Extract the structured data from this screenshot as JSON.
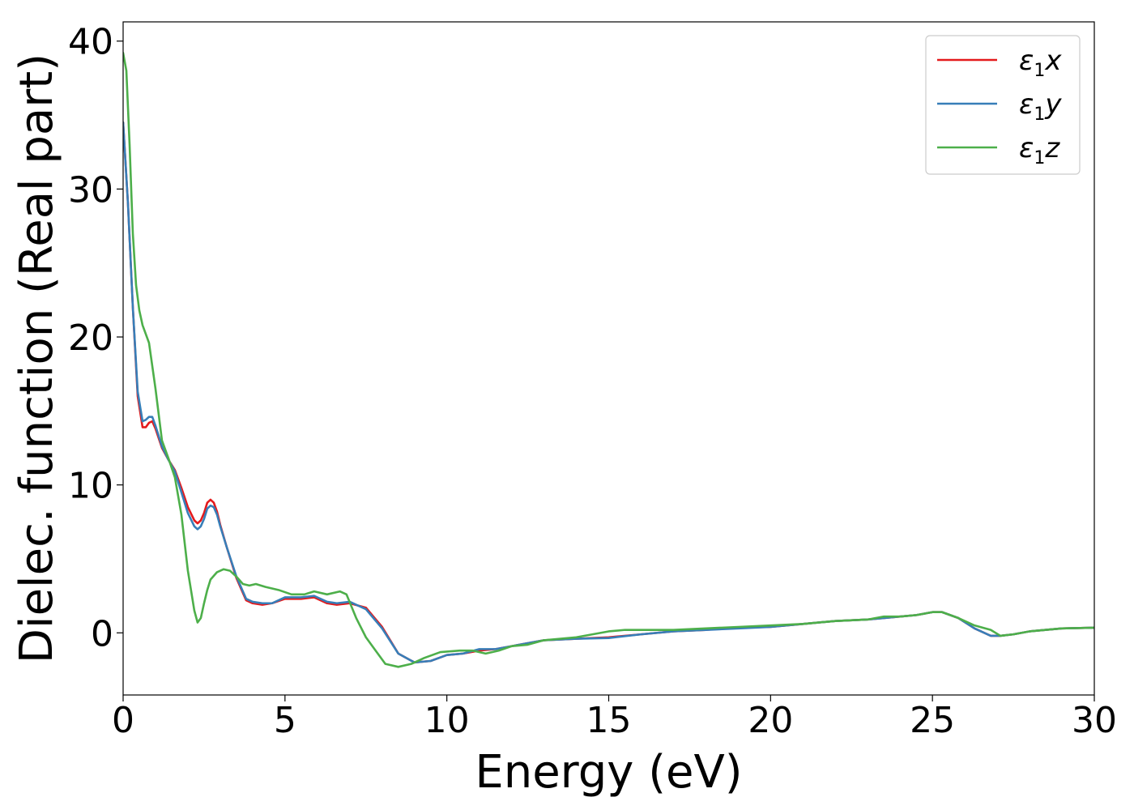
{
  "chart_data": {
    "type": "line",
    "xlabel": "Energy (eV)",
    "ylabel": "Dielec. function (Real part)",
    "xlim": [
      0,
      30
    ],
    "ylim": [
      -4.2,
      41.3
    ],
    "xticks": [
      0,
      5,
      10,
      15,
      20,
      25,
      30
    ],
    "yticks": [
      0,
      10,
      20,
      30,
      40
    ],
    "grid": false,
    "legend_position": "top-right",
    "series": [
      {
        "name": "ε1x",
        "legend": {
          "base": "ε",
          "sub": "1",
          "suffix": "x"
        },
        "color": "#e41a1c",
        "x": [
          0,
          0.15,
          0.3,
          0.45,
          0.6,
          0.7,
          0.8,
          0.9,
          1.0,
          1.2,
          1.4,
          1.6,
          1.8,
          2.0,
          2.2,
          2.3,
          2.4,
          2.5,
          2.6,
          2.7,
          2.8,
          2.9,
          3.0,
          3.2,
          3.5,
          3.8,
          4.0,
          4.3,
          4.6,
          5.0,
          5.5,
          5.9,
          6.3,
          6.6,
          7.0,
          7.5,
          8.0,
          8.5,
          9.0,
          9.5,
          10.0,
          10.5,
          11.0,
          11.5,
          12.0,
          12.5,
          13.0,
          14.0,
          15.0,
          16.0,
          17.0,
          18.0,
          19.0,
          20.0,
          21.0,
          22.0,
          23.0,
          24.0,
          24.5,
          25.0,
          25.3,
          25.8,
          26.3,
          26.8,
          27.1,
          27.5,
          28.0,
          29.0,
          30.0
        ],
        "y": [
          34.5,
          29,
          22,
          16,
          13.9,
          13.9,
          14.2,
          14.3,
          13.8,
          12.5,
          11.7,
          11.0,
          9.8,
          8.5,
          7.6,
          7.4,
          7.6,
          8.1,
          8.8,
          9.0,
          8.8,
          8.2,
          7.3,
          5.8,
          3.7,
          2.2,
          2.0,
          1.9,
          2.0,
          2.3,
          2.3,
          2.4,
          2.0,
          1.9,
          2.0,
          1.7,
          0.4,
          -1.4,
          -2.0,
          -1.9,
          -1.5,
          -1.4,
          -1.2,
          -1.1,
          -0.9,
          -0.7,
          -0.5,
          -0.4,
          -0.3,
          -0.1,
          0.1,
          0.2,
          0.35,
          0.4,
          0.6,
          0.8,
          0.9,
          1.1,
          1.2,
          1.4,
          1.4,
          1.0,
          0.3,
          -0.2,
          -0.2,
          -0.1,
          0.1,
          0.3,
          0.35
        ]
      },
      {
        "name": "ε1y",
        "legend": {
          "base": "ε",
          "sub": "1",
          "suffix": "y"
        },
        "color": "#377eb8",
        "x": [
          0,
          0.15,
          0.3,
          0.45,
          0.6,
          0.7,
          0.8,
          0.9,
          1.0,
          1.2,
          1.4,
          1.6,
          1.8,
          2.0,
          2.2,
          2.3,
          2.4,
          2.5,
          2.6,
          2.7,
          2.8,
          2.9,
          3.0,
          3.2,
          3.5,
          3.8,
          4.0,
          4.3,
          4.6,
          5.0,
          5.5,
          5.9,
          6.3,
          6.6,
          7.0,
          7.5,
          8.0,
          8.5,
          9.0,
          9.5,
          10.0,
          10.5,
          11.0,
          11.5,
          12.0,
          12.5,
          13.0,
          14.0,
          15.0,
          16.0,
          17.0,
          18.0,
          19.0,
          20.0,
          21.0,
          22.0,
          23.0,
          24.0,
          24.5,
          25.0,
          25.3,
          25.8,
          26.3,
          26.8,
          27.1,
          27.5,
          28.0,
          29.0,
          30.0
        ],
        "y": [
          34.5,
          29,
          22,
          16.3,
          14.3,
          14.4,
          14.6,
          14.6,
          14.0,
          12.6,
          11.7,
          10.9,
          9.5,
          8.1,
          7.2,
          7.0,
          7.2,
          7.7,
          8.4,
          8.6,
          8.5,
          8.0,
          7.2,
          5.8,
          3.8,
          2.3,
          2.1,
          2.0,
          2.0,
          2.4,
          2.4,
          2.5,
          2.1,
          2.0,
          2.1,
          1.6,
          0.3,
          -1.4,
          -2.0,
          -1.9,
          -1.5,
          -1.4,
          -1.1,
          -1.1,
          -0.9,
          -0.7,
          -0.5,
          -0.4,
          -0.35,
          -0.1,
          0.1,
          0.2,
          0.3,
          0.4,
          0.6,
          0.8,
          0.9,
          1.1,
          1.2,
          1.4,
          1.4,
          1.0,
          0.3,
          -0.2,
          -0.2,
          -0.1,
          0.1,
          0.3,
          0.35
        ]
      },
      {
        "name": "ε1z",
        "legend": {
          "base": "ε",
          "sub": "1",
          "suffix": "z"
        },
        "color": "#4daf4a",
        "x": [
          0,
          0.1,
          0.2,
          0.3,
          0.4,
          0.5,
          0.6,
          0.8,
          1.0,
          1.2,
          1.4,
          1.6,
          1.8,
          2.0,
          2.2,
          2.3,
          2.4,
          2.5,
          2.6,
          2.7,
          2.9,
          3.1,
          3.3,
          3.5,
          3.7,
          3.9,
          4.1,
          4.4,
          4.8,
          5.2,
          5.6,
          5.9,
          6.3,
          6.7,
          6.9,
          7.2,
          7.5,
          7.8,
          8.1,
          8.5,
          8.9,
          9.3,
          9.8,
          10.4,
          10.8,
          11.2,
          11.6,
          12.0,
          12.5,
          13.0,
          14.0,
          15.0,
          15.5,
          16.0,
          17.0,
          18.0,
          19.0,
          20.0,
          21.0,
          22.0,
          23.0,
          23.5,
          24.0,
          24.5,
          25.0,
          25.3,
          25.8,
          26.3,
          26.8,
          27.1,
          27.5,
          28.0,
          29.0,
          30.0
        ],
        "y": [
          39.2,
          38,
          33,
          27,
          23.5,
          21.8,
          20.8,
          19.6,
          16.5,
          13.0,
          11.8,
          10.5,
          8.0,
          4.2,
          1.5,
          0.7,
          1.0,
          2.0,
          2.9,
          3.6,
          4.1,
          4.3,
          4.2,
          3.8,
          3.3,
          3.2,
          3.3,
          3.1,
          2.9,
          2.6,
          2.6,
          2.8,
          2.6,
          2.8,
          2.6,
          1.0,
          -0.3,
          -1.2,
          -2.1,
          -2.3,
          -2.1,
          -1.7,
          -1.3,
          -1.2,
          -1.2,
          -1.4,
          -1.2,
          -0.9,
          -0.8,
          -0.5,
          -0.3,
          0.1,
          0.2,
          0.2,
          0.2,
          0.3,
          0.4,
          0.5,
          0.6,
          0.8,
          0.9,
          1.1,
          1.1,
          1.2,
          1.4,
          1.4,
          1.0,
          0.5,
          0.2,
          -0.2,
          -0.1,
          0.1,
          0.3,
          0.35
        ]
      }
    ]
  }
}
